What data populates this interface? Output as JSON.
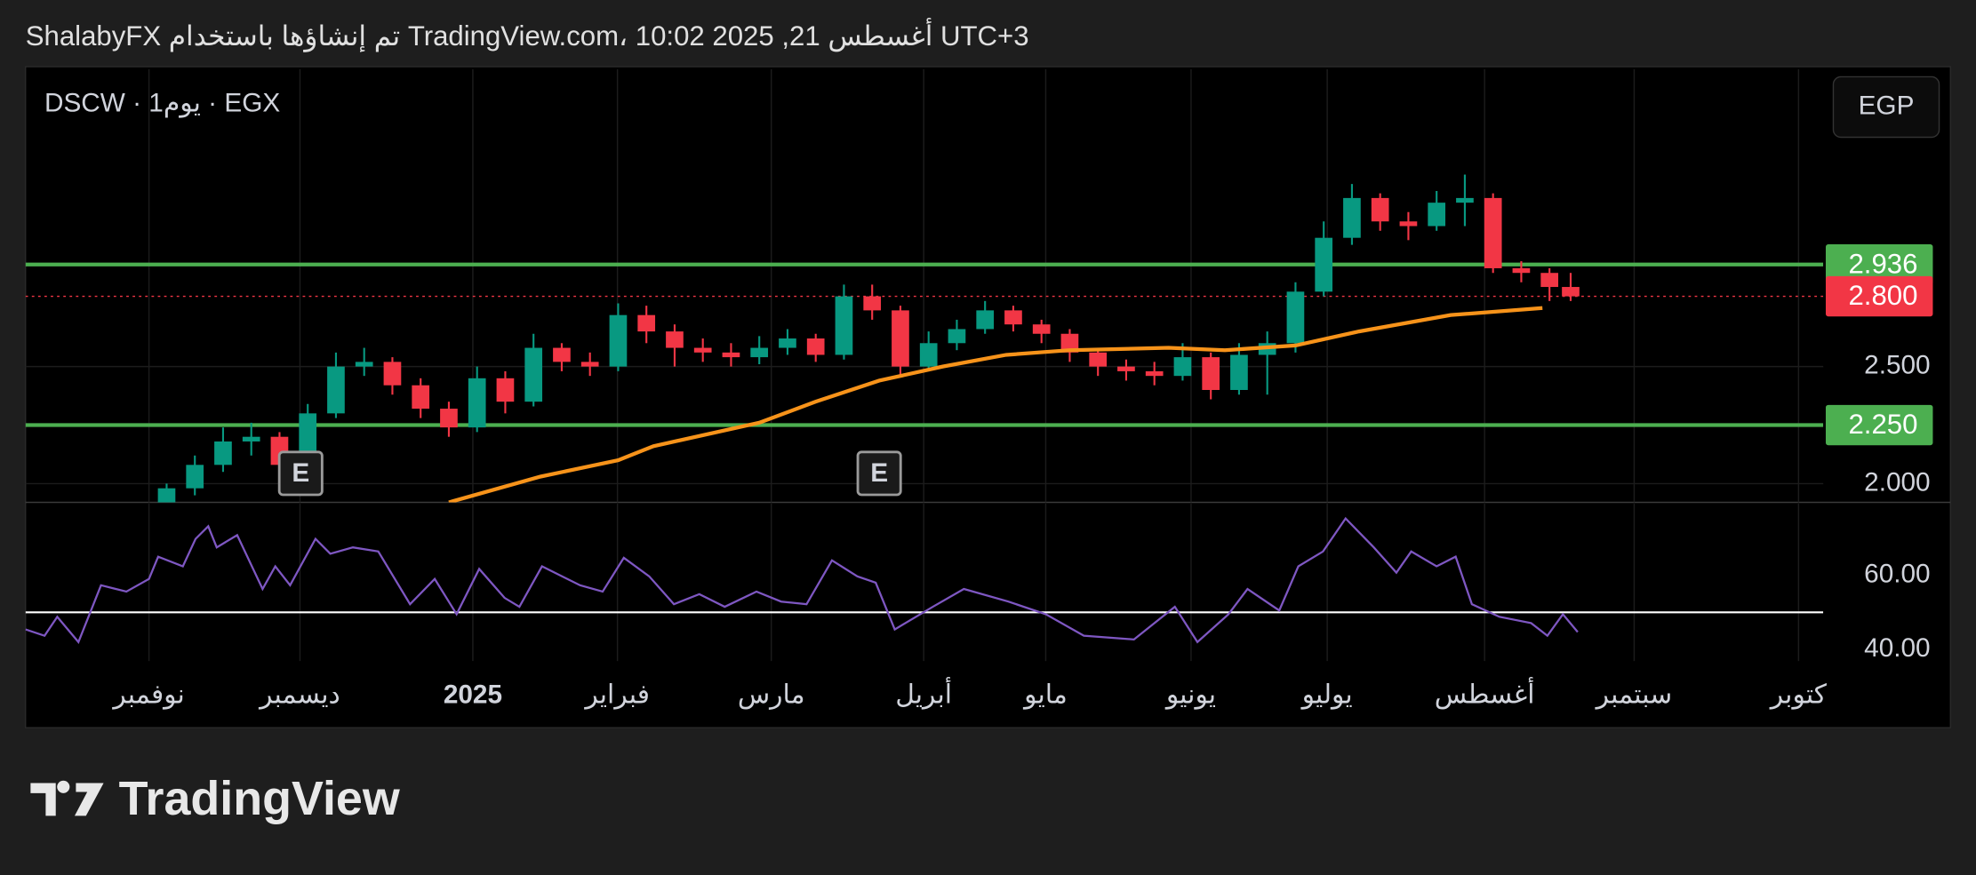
{
  "header": {
    "text": "ShalabyFX تم إنشاؤها باستخدام TradingView.com، 10:02 2025 ,21 أغسطس UTC+3"
  },
  "footer": {
    "logo": "TradingView"
  },
  "chart_data": [
    {
      "type": "candlestick",
      "title": "DSCW · 1يوم · EGX",
      "currency": "EGP",
      "up_color": "#089981",
      "down_color": "#f23645",
      "x": [
        20,
        24,
        28,
        32,
        36,
        40,
        44,
        48,
        52,
        56,
        60,
        64,
        68,
        72,
        76,
        80,
        84,
        88,
        92,
        96,
        100,
        104,
        108,
        112,
        116,
        120,
        124,
        128,
        132,
        136,
        140,
        144,
        148,
        152,
        156,
        160,
        164,
        168,
        172,
        176,
        180,
        184,
        188,
        192,
        196,
        200,
        204,
        208,
        212,
        216,
        219
      ],
      "open": [
        1.85,
        1.98,
        2.08,
        2.18,
        2.2,
        2.08,
        2.3,
        2.5,
        2.52,
        2.42,
        2.32,
        2.24,
        2.45,
        2.35,
        2.58,
        2.52,
        2.5,
        2.72,
        2.65,
        2.58,
        2.56,
        2.54,
        2.58,
        2.62,
        2.55,
        2.8,
        2.74,
        2.5,
        2.6,
        2.66,
        2.74,
        2.68,
        2.64,
        2.56,
        2.5,
        2.48,
        2.46,
        2.54,
        2.4,
        2.55,
        2.6,
        2.82,
        3.05,
        3.22,
        3.12,
        3.1,
        3.2,
        3.22,
        2.92,
        2.9,
        2.84
      ],
      "high": [
        2.0,
        2.12,
        2.24,
        2.26,
        2.22,
        2.34,
        2.56,
        2.58,
        2.54,
        2.45,
        2.35,
        2.5,
        2.48,
        2.64,
        2.6,
        2.56,
        2.77,
        2.76,
        2.68,
        2.62,
        2.6,
        2.63,
        2.66,
        2.64,
        2.85,
        2.85,
        2.76,
        2.65,
        2.7,
        2.78,
        2.76,
        2.7,
        2.66,
        2.58,
        2.53,
        2.52,
        2.6,
        2.56,
        2.6,
        2.65,
        2.86,
        3.12,
        3.28,
        3.24,
        3.16,
        3.25,
        3.32,
        3.24,
        2.95,
        2.92,
        2.9
      ],
      "low": [
        1.8,
        1.95,
        2.05,
        2.12,
        2.02,
        2.05,
        2.28,
        2.46,
        2.38,
        2.28,
        2.2,
        2.22,
        2.3,
        2.33,
        2.48,
        2.46,
        2.48,
        2.6,
        2.5,
        2.52,
        2.5,
        2.51,
        2.55,
        2.52,
        2.53,
        2.7,
        2.46,
        2.48,
        2.57,
        2.64,
        2.65,
        2.6,
        2.52,
        2.46,
        2.44,
        2.42,
        2.44,
        2.36,
        2.38,
        2.38,
        2.56,
        2.8,
        3.02,
        3.08,
        3.04,
        3.08,
        3.1,
        2.9,
        2.86,
        2.78,
        2.78
      ],
      "close": [
        1.98,
        2.08,
        2.18,
        2.2,
        2.08,
        2.3,
        2.5,
        2.52,
        2.42,
        2.32,
        2.24,
        2.45,
        2.35,
        2.58,
        2.52,
        2.5,
        2.72,
        2.65,
        2.58,
        2.56,
        2.54,
        2.58,
        2.62,
        2.55,
        2.8,
        2.74,
        2.5,
        2.6,
        2.66,
        2.74,
        2.68,
        2.64,
        2.56,
        2.5,
        2.48,
        2.46,
        2.54,
        2.4,
        2.55,
        2.6,
        2.82,
        3.05,
        3.22,
        3.12,
        3.1,
        3.2,
        3.22,
        2.92,
        2.9,
        2.84,
        2.8
      ],
      "series": [
        {
          "type": "line",
          "color": "#f7931a",
          "x": [
            60,
            73,
            84,
            89,
            104,
            112,
            121,
            130,
            139,
            148,
            162,
            170,
            180,
            189,
            202,
            215
          ],
          "values": [
            1.92,
            2.03,
            2.1,
            2.16,
            2.26,
            2.35,
            2.44,
            2.5,
            2.55,
            2.57,
            2.58,
            2.57,
            2.59,
            2.65,
            2.72,
            2.75
          ]
        }
      ],
      "levels": [
        {
          "value": 2.936,
          "label": "2.936",
          "color": "#4caf50"
        },
        {
          "value": 2.25,
          "label": "2.250",
          "color": "#4caf50"
        }
      ],
      "last_price": {
        "value": 2.8,
        "label": "2.800",
        "color": "#f23645"
      },
      "events": {
        "x": [
          39,
          121
        ],
        "labels": [
          "E",
          "E"
        ]
      },
      "xlim": [
        0,
        254.8
      ],
      "ylim": [
        1.92,
        3.77
      ],
      "yticks": [
        {
          "value": 2.5,
          "label": "2.500"
        },
        {
          "value": 2,
          "label": "2.000"
        }
      ],
      "grid": true
    },
    {
      "type": "line",
      "color": "#7e57c2",
      "x": [
        0,
        2.7,
        4.5,
        7.5,
        10.7,
        14.3,
        17.5,
        18.8,
        22.3,
        24.1,
        25.9,
        27.1,
        30,
        33.6,
        35.4,
        37.5,
        41.1,
        43.2,
        46.4,
        50,
        54.5,
        58,
        61.1,
        64.3,
        67.9,
        70,
        73.2,
        78.6,
        81.8,
        84.8,
        88.4,
        91.9,
        95.5,
        99.1,
        103.6,
        107.1,
        110.7,
        114.3,
        117.9,
        120.5,
        123.2,
        128.6,
        133,
        139.3,
        144.6,
        150,
        157.1,
        162.9,
        166.1,
        170.5,
        173.2,
        177.7,
        180.4,
        183.9,
        187.1,
        191.1,
        194.3,
        196.4,
        200,
        202.7,
        205,
        208.9,
        213.4,
        215.7,
        217.9,
        220
      ],
      "values": [
        45.4,
        43.7,
        48.8,
        42,
        57.3,
        55.6,
        59,
        65,
        62.4,
        69.8,
        73.2,
        67.5,
        70.8,
        56.3,
        62.4,
        57.3,
        69.8,
        65.8,
        67.5,
        66.4,
        52.2,
        59,
        49.5,
        61.7,
        53.9,
        51.5,
        62.4,
        57.3,
        55.6,
        64.7,
        59.7,
        52.2,
        54.9,
        51.5,
        55.6,
        52.9,
        52.2,
        64,
        59.7,
        58,
        45.4,
        51.5,
        56.3,
        52.9,
        49.5,
        43.7,
        42.7,
        51.5,
        42,
        49.5,
        56.3,
        50.5,
        62.4,
        66.4,
        75.3,
        67.5,
        60.7,
        66.4,
        62.4,
        65,
        52.2,
        48.8,
        47.1,
        43.7,
        49.5,
        44.7
      ],
      "level": 50,
      "level_color": "#ffffff",
      "xlim": [
        0,
        254.8
      ],
      "ylim": [
        36.9,
        79.3
      ],
      "yticks": [
        {
          "value": 60,
          "label": "60.00"
        },
        {
          "value": 40,
          "label": "40.00"
        }
      ],
      "xticks": [
        {
          "value": 17.5,
          "label": "نوفمبر"
        },
        {
          "value": 38.9,
          "label": "ديسمبر"
        },
        {
          "value": 63.4,
          "label": "2025",
          "bold": true
        },
        {
          "value": 83.9,
          "label": "فبراير"
        },
        {
          "value": 105.7,
          "label": "مارس"
        },
        {
          "value": 127.3,
          "label": "أبريل"
        },
        {
          "value": 144.6,
          "label": "مايو"
        },
        {
          "value": 165.2,
          "label": "يونيو"
        },
        {
          "value": 184.5,
          "label": "يوليو"
        },
        {
          "value": 206.8,
          "label": "أغسطس"
        },
        {
          "value": 228,
          "label": "سبتمبر"
        },
        {
          "value": 251.3,
          "label": "كتوبر"
        }
      ]
    }
  ]
}
